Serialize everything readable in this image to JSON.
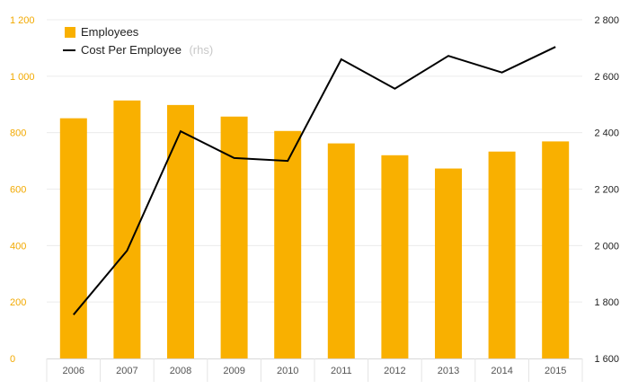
{
  "chart_data": {
    "type": "bar",
    "categories": [
      "2006",
      "2007",
      "2008",
      "2009",
      "2010",
      "2011",
      "2012",
      "2013",
      "2014",
      "2015"
    ],
    "series": [
      {
        "name": "Employees",
        "kind": "bar",
        "axis": "left",
        "values": [
          851,
          914,
          898,
          857,
          806,
          762,
          720,
          673,
          733,
          769
        ]
      },
      {
        "name": "Cost Per Employee",
        "name_suffix": "(rhs)",
        "kind": "line",
        "axis": "right",
        "values": [
          1755,
          1982,
          2405,
          2310,
          2300,
          2660,
          2556,
          2672,
          2613,
          2704
        ]
      }
    ],
    "ylim_left": [
      0,
      1200
    ],
    "yticks_left": [
      0,
      200,
      400,
      600,
      800,
      1000,
      1200
    ],
    "ytick_labels_left": [
      "0",
      "200",
      "400",
      "600",
      "800",
      "1 000",
      "1 200"
    ],
    "ylim_right": [
      1600,
      2800
    ],
    "yticks_right": [
      1600,
      1800,
      2000,
      2200,
      2400,
      2600,
      2800
    ],
    "ytick_labels_right": [
      "1 600",
      "1 800",
      "2 000",
      "2 200",
      "2 400",
      "2 600",
      "2 800"
    ],
    "grid": true,
    "legend_position": "top-left",
    "colors": {
      "bar": "#f9b000",
      "line": "#000000",
      "left_axis": "#f2a900",
      "grid": "#ececec"
    }
  }
}
